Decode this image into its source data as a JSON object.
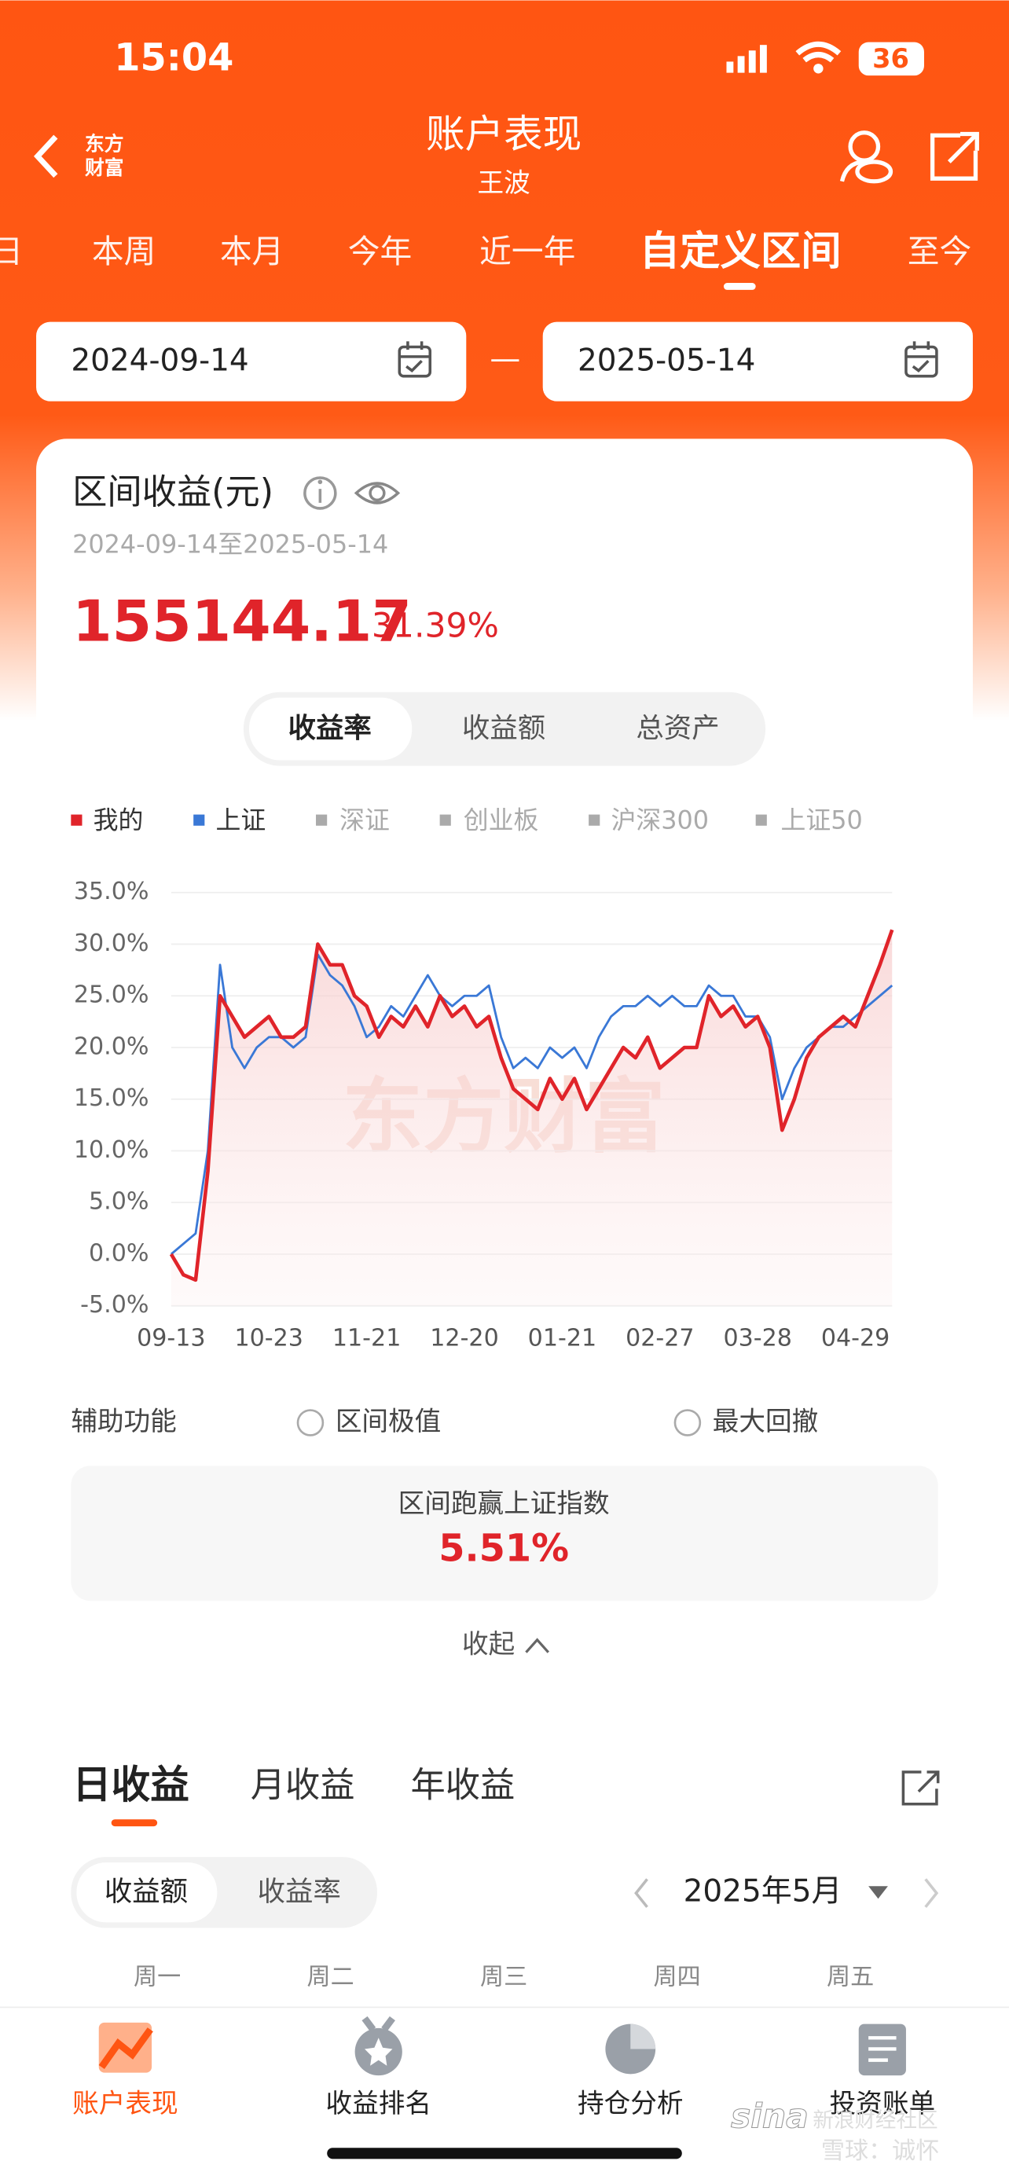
{
  "status": {
    "time": "15:04",
    "battery": "36"
  },
  "header": {
    "logo": [
      "东方",
      "财富"
    ],
    "title": "账户表现",
    "subtitle": "王波"
  },
  "tabs": [
    "日",
    "本周",
    "本月",
    "今年",
    "近一年",
    "自定义区间",
    "至今"
  ],
  "date_range": {
    "start": "2024-09-14",
    "separator": "—",
    "end": "2025-05-14"
  },
  "summary": {
    "title": "区间收益(元)",
    "period": "2024-09-14至2025-05-14",
    "amount": "155144.17",
    "rate": "31.39%"
  },
  "toggle": [
    "收益率",
    "收益额",
    "总资产"
  ],
  "chart_data": {
    "type": "line",
    "categories": [
      "09-13",
      null,
      null,
      null,
      null,
      null,
      null,
      null,
      "10-23",
      null,
      null,
      null,
      null,
      null,
      null,
      null,
      "11-21",
      null,
      null,
      null,
      null,
      null,
      null,
      null,
      "12-20",
      null,
      null,
      null,
      null,
      null,
      null,
      null,
      "01-21",
      null,
      null,
      null,
      null,
      null,
      null,
      null,
      "02-27",
      null,
      null,
      null,
      null,
      null,
      null,
      null,
      "03-28",
      null,
      null,
      null,
      null,
      null,
      null,
      null,
      "04-29",
      null,
      null,
      null
    ],
    "series": [
      {
        "name": "我的",
        "color": "#e0242a",
        "values": [
          0,
          -2,
          -2.5,
          8,
          25,
          23,
          21,
          22,
          23,
          21,
          21,
          22,
          30,
          28,
          28,
          25,
          24,
          21,
          23,
          22,
          24,
          22,
          25,
          23,
          24,
          22,
          23,
          19,
          16,
          15,
          14,
          17,
          15,
          17,
          14,
          16,
          18,
          20,
          19,
          21,
          18,
          19,
          20,
          20,
          25,
          23,
          24,
          22,
          23,
          20,
          12,
          15,
          19,
          21,
          22,
          23,
          22,
          25,
          28,
          31.39
        ]
      },
      {
        "name": "上证",
        "color": "#3a78d6",
        "values": [
          0,
          1,
          2,
          10,
          28,
          20,
          18,
          20,
          21,
          21,
          20,
          21,
          29,
          27,
          26,
          24,
          21,
          22,
          24,
          23,
          25,
          27,
          25,
          24,
          25,
          25,
          26,
          21,
          18,
          19,
          18,
          20,
          19,
          20,
          18,
          21,
          23,
          24,
          24,
          25,
          24,
          25,
          24,
          24,
          26,
          25,
          25,
          23,
          23,
          21,
          15,
          18,
          20,
          21,
          22,
          22,
          23,
          24,
          25,
          26
        ]
      }
    ],
    "legend_inactive": [
      "深证",
      "创业板",
      "沪深300",
      "上证50"
    ],
    "ylim": [
      -5,
      35
    ],
    "yticks": [
      {
        "value": 35,
        "label": "35.0%"
      },
      {
        "value": 30,
        "label": "30.0%"
      },
      {
        "value": 25,
        "label": "25.0%"
      },
      {
        "value": 20,
        "label": "20.0%"
      },
      {
        "value": 15,
        "label": "15.0%"
      },
      {
        "value": 10,
        "label": "10.0%"
      },
      {
        "value": 5,
        "label": "5.0%"
      },
      {
        "value": 0,
        "label": "0.0%"
      },
      {
        "value": -5,
        "label": "-5.0%"
      }
    ],
    "grid": true,
    "watermark": "东方财富"
  },
  "aux": {
    "label": "辅助功能",
    "options": [
      "区间极值",
      "最大回撤"
    ]
  },
  "compare": {
    "title": "区间跑赢上证指数",
    "value": "5.51%"
  },
  "collapse": "收起",
  "daily": {
    "tabs": [
      "日收益",
      "月收益",
      "年收益"
    ],
    "toggle": [
      "收益额",
      "收益率"
    ],
    "month": "2025年5月",
    "weekdays": [
      "周一",
      "周二",
      "周三",
      "周四",
      "周五"
    ]
  },
  "nav": [
    "账户表现",
    "收益排名",
    "持仓分析",
    "投资账单"
  ],
  "overlay": {
    "brand": "sina",
    "lines": [
      "新浪财经社区",
      "雪球：诚怀"
    ]
  }
}
